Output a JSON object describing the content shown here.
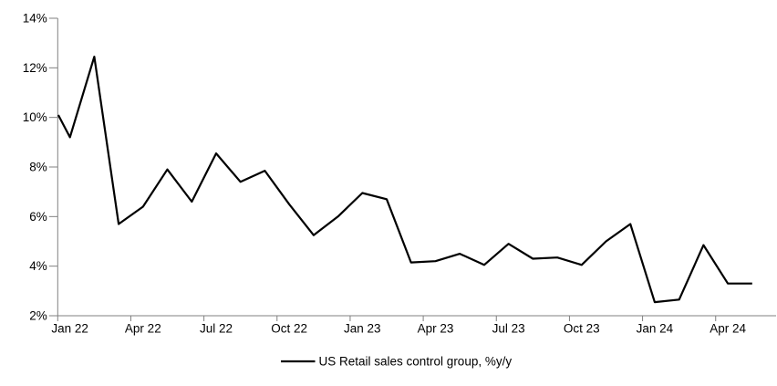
{
  "legend": {
    "label": "US Retail sales control group, %y/y"
  },
  "y_axis": {
    "tick_labels": [
      "14%",
      "12%",
      "10%",
      "8%",
      "6%",
      "4%",
      "2%"
    ],
    "min": 2,
    "max": 14,
    "step": 2
  },
  "x_axis": {
    "tick_labels": [
      "Jan 22",
      "Apr 22",
      "Jul 22",
      "Oct 22",
      "Jan 23",
      "Apr 23",
      "Jul 23",
      "Oct 23",
      "Jan 24",
      "Apr 24"
    ]
  },
  "chart_data": {
    "type": "line",
    "title": "",
    "xlabel": "",
    "ylabel": "",
    "ylim": [
      2,
      14
    ],
    "grid": false,
    "legend_position": "bottom-center",
    "axis_color": "#808080",
    "line_color": "#000000",
    "x": [
      "Jan 22",
      "Feb 22",
      "Mar 22",
      "Apr 22",
      "May 22",
      "Jun 22",
      "Jul 22",
      "Aug 22",
      "Sep 22",
      "Oct 22",
      "Nov 22",
      "Dec 22",
      "Jan 23",
      "Feb 23",
      "Mar 23",
      "Apr 23",
      "May 23",
      "Jun 23",
      "Jul 23",
      "Aug 23",
      "Sep 23",
      "Oct 23",
      "Nov 23",
      "Dec 23",
      "Jan 24",
      "Feb 24",
      "Mar 24",
      "Apr 24",
      "May 24"
    ],
    "series": [
      {
        "name": "US Retail sales control group, %y/y",
        "color": "#000000",
        "values": [
          9.2,
          12.45,
          5.7,
          6.4,
          7.9,
          6.6,
          8.55,
          7.4,
          7.85,
          6.5,
          5.25,
          6.0,
          6.95,
          6.7,
          4.15,
          4.2,
          4.5,
          4.05,
          4.9,
          4.3,
          4.35,
          4.05,
          5.0,
          5.7,
          2.55,
          2.65,
          4.85,
          3.3,
          3.3
        ]
      }
    ],
    "left_edge_clip_value": 10.1
  }
}
